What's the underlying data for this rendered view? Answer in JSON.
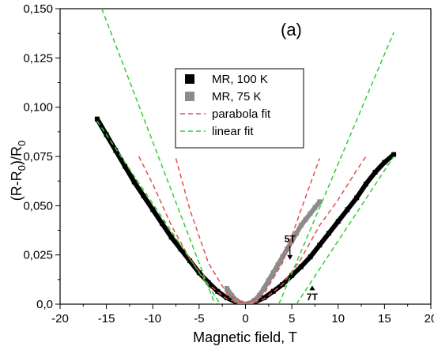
{
  "chart_data": {
    "type": "scatter",
    "panel_label": "(a)",
    "xlabel": "Magnetic field, T",
    "ylabel_main": "(R-R",
    "ylabel_sub1": "0",
    "ylabel_mid": ")/R",
    "ylabel_sub2": "0",
    "xlim": [
      -20,
      20
    ],
    "ylim": [
      0,
      0.15
    ],
    "xticks": [
      -20,
      -15,
      -10,
      -5,
      0,
      5,
      10,
      15,
      20
    ],
    "xtick_labels": [
      "-20",
      "-15",
      "-10",
      "-5",
      "0",
      "5",
      "10",
      "15",
      "20"
    ],
    "yticks": [
      0,
      0.025,
      0.05,
      0.075,
      0.1,
      0.125,
      0.15
    ],
    "ytick_labels": [
      "0,0",
      "0,025",
      "0,050",
      "0,075",
      "0,100",
      "0,125",
      "0,150"
    ],
    "grid": false,
    "legend_position": "top-center",
    "series": [
      {
        "name": "MR, 100 K",
        "kind": "markers",
        "color": "#000000",
        "x": [
          -16,
          -15,
          -14,
          -13,
          -12,
          -11,
          -10,
          -9,
          -8,
          -7,
          -6,
          -5,
          -4,
          -3,
          -2,
          -1,
          0,
          1,
          2,
          3,
          4,
          5,
          6,
          7,
          8,
          9,
          10,
          11,
          12,
          13,
          14,
          15,
          16
        ],
        "y": [
          0.094,
          0.086,
          0.078,
          0.07,
          0.062,
          0.055,
          0.048,
          0.041,
          0.034,
          0.028,
          0.022,
          0.016,
          0.011,
          0.0065,
          0.0032,
          0.0011,
          0.0,
          0.0011,
          0.0032,
          0.0065,
          0.01,
          0.0145,
          0.019,
          0.024,
          0.03,
          0.036,
          0.042,
          0.048,
          0.054,
          0.061,
          0.067,
          0.072,
          0.076
        ]
      },
      {
        "name": "MR, 75 K",
        "kind": "markers",
        "color": "#8c8c8c",
        "x": [
          -2,
          -1.5,
          -1,
          -0.5,
          0,
          0.5,
          1,
          1.5,
          2,
          2.5,
          3,
          3.5,
          4,
          4.5,
          5,
          5.5,
          6,
          6.5,
          7,
          7.5,
          8
        ],
        "y": [
          0.008,
          0.0045,
          0.002,
          0.0006,
          0.0,
          0.0006,
          0.002,
          0.0045,
          0.008,
          0.012,
          0.016,
          0.02,
          0.024,
          0.028,
          0.032,
          0.036,
          0.04,
          0.043,
          0.046,
          0.049,
          0.052
        ]
      },
      {
        "name": "parabola fit",
        "kind": "dashed-line",
        "color": "#e05050",
        "x": [
          -11.5,
          -10,
          -8,
          -6,
          -4,
          -2,
          0,
          2,
          4,
          6,
          8,
          10,
          12,
          13
        ],
        "y": [
          0.075,
          0.061,
          0.04,
          0.023,
          0.01,
          0.0026,
          0.0,
          0.0026,
          0.01,
          0.023,
          0.04,
          0.053,
          0.068,
          0.075
        ]
      },
      {
        "name": "parabola fit",
        "kind": "dashed-line",
        "color": "#e05050",
        "x": [
          -7.5,
          -6,
          -4,
          -2,
          0,
          2,
          4,
          6,
          8
        ],
        "y": [
          0.074,
          0.048,
          0.021,
          0.0053,
          0.0,
          0.0053,
          0.021,
          0.048,
          0.074
        ]
      },
      {
        "name": "linear fit",
        "kind": "dashed-line",
        "color": "#33cc33",
        "x": [
          -15.5,
          -3.3
        ],
        "y": [
          0.15,
          0.0
        ]
      },
      {
        "name": "linear fit",
        "kind": "dashed-line",
        "color": "#33cc33",
        "x": [
          -16,
          -2.7
        ],
        "y": [
          0.093,
          0.0
        ]
      },
      {
        "name": "linear fit",
        "kind": "dashed-line",
        "color": "#33cc33",
        "x": [
          3.6,
          16
        ],
        "y": [
          0.0,
          0.138
        ]
      },
      {
        "name": "linear fit",
        "kind": "dashed-line",
        "color": "#33cc33",
        "x": [
          5.5,
          16
        ],
        "y": [
          0.0,
          0.075
        ]
      }
    ],
    "legend": [
      {
        "label": "MR, 100 K",
        "kind": "marker",
        "color": "#000000"
      },
      {
        "label": "MR, 75 K",
        "kind": "marker",
        "color": "#8c8c8c"
      },
      {
        "label": "parabola fit",
        "kind": "dash",
        "color": "#e05050"
      },
      {
        "label": "linear fit",
        "kind": "dash",
        "color": "#33cc33"
      }
    ],
    "annotations": [
      {
        "text": "5T",
        "x": 4.8,
        "y": 0.029,
        "arrow_to_y": 0.0225
      },
      {
        "text": "7T",
        "x": 7.2,
        "y": 0.0,
        "arrow_to_y": 0.0095
      }
    ]
  }
}
